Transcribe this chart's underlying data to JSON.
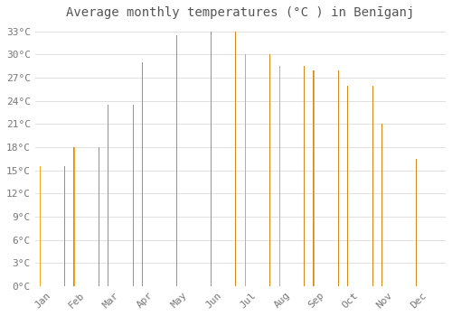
{
  "title": "Average monthly temperatures (°C ) in Benīganj",
  "months": [
    "Jan",
    "Feb",
    "Mar",
    "Apr",
    "May",
    "Jun",
    "Jul",
    "Aug",
    "Sep",
    "Oct",
    "Nov",
    "Dec"
  ],
  "temperatures": [
    15.5,
    18.0,
    23.5,
    29.0,
    32.5,
    33.0,
    30.0,
    28.5,
    28.0,
    26.0,
    21.0,
    16.5
  ],
  "bar_color_left": "#F5A623",
  "bar_color_center": "#FFD96A",
  "bar_color_right": "#F5A623",
  "background_color": "#FFFFFF",
  "grid_color": "#E0E0E0",
  "text_color": "#777777",
  "title_color": "#555555",
  "ylim": [
    0,
    34
  ],
  "yticks": [
    0,
    3,
    6,
    9,
    12,
    15,
    18,
    21,
    24,
    27,
    30,
    33
  ],
  "title_fontsize": 10,
  "tick_fontsize": 8,
  "bar_width": 0.75
}
